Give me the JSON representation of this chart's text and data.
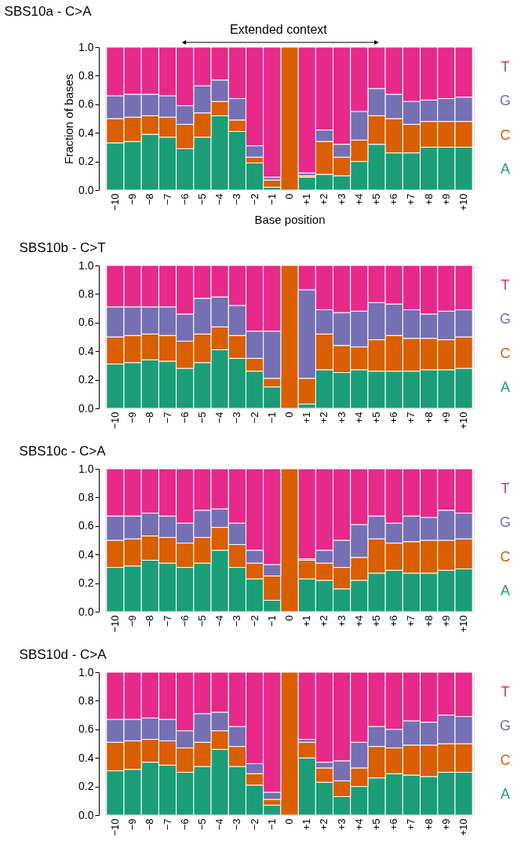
{
  "chart_data": [
    {
      "type": "bar",
      "stacked": true,
      "title": "SBS10a - C>A",
      "ylabel": "Fraction of bases",
      "xlabel": "Base position",
      "annotations": [
        "Extended context"
      ],
      "legend": "right",
      "ylim": [
        0,
        1
      ],
      "yticks": [
        {
          "value": 0,
          "label": "0.0"
        },
        {
          "value": 0.2,
          "label": "0.2"
        },
        {
          "value": 0.4,
          "label": "0.4"
        },
        {
          "value": 0.6,
          "label": "0.6"
        },
        {
          "value": 0.8,
          "label": "0.8"
        },
        {
          "value": 1,
          "label": "1.0"
        }
      ],
      "categories": [
        "−10",
        "−9",
        "−8",
        "−7",
        "−6",
        "−5",
        "−4",
        "−3",
        "−2",
        "−1",
        "0",
        "+1",
        "+2",
        "+3",
        "+4",
        "+5",
        "+6",
        "+7",
        "+8",
        "+9",
        "+10"
      ],
      "series": [
        {
          "name": "A",
          "color": "#1b9e77",
          "values": [
            0.33,
            0.34,
            0.39,
            0.37,
            0.29,
            0.37,
            0.52,
            0.41,
            0.19,
            0.02,
            0,
            0.09,
            0.11,
            0.1,
            0.2,
            0.32,
            0.26,
            0.26,
            0.3,
            0.3,
            0.3
          ]
        },
        {
          "name": "C",
          "color": "#d95f02",
          "values": [
            0.17,
            0.17,
            0.13,
            0.14,
            0.17,
            0.17,
            0.1,
            0.08,
            0.04,
            0.05,
            1,
            0.01,
            0.23,
            0.13,
            0.15,
            0.2,
            0.24,
            0.2,
            0.18,
            0.18,
            0.18
          ]
        },
        {
          "name": "G",
          "color": "#7570b3",
          "values": [
            0.16,
            0.16,
            0.15,
            0.15,
            0.13,
            0.19,
            0.15,
            0.15,
            0.08,
            0.02,
            0,
            0.02,
            0.08,
            0.09,
            0.2,
            0.19,
            0.17,
            0.16,
            0.15,
            0.16,
            0.17
          ]
        },
        {
          "name": "T",
          "color": "#e7298a",
          "values": [
            0.34,
            0.33,
            0.33,
            0.34,
            0.41,
            0.27,
            0.23,
            0.36,
            0.69,
            0.91,
            0,
            0.88,
            0.58,
            0.68,
            0.45,
            0.29,
            0.33,
            0.38,
            0.37,
            0.36,
            0.35
          ]
        }
      ]
    },
    {
      "type": "bar",
      "stacked": true,
      "title": "SBS10b - C>T",
      "legend": "right",
      "ylim": [
        0,
        1
      ],
      "yticks": [
        {
          "value": 0,
          "label": "0.0"
        },
        {
          "value": 0.2,
          "label": "0.2"
        },
        {
          "value": 0.4,
          "label": "0.4"
        },
        {
          "value": 0.6,
          "label": "0.6"
        },
        {
          "value": 0.8,
          "label": "0.8"
        },
        {
          "value": 1,
          "label": "1.0"
        }
      ],
      "categories": [
        "−10",
        "−9",
        "−8",
        "−7",
        "−6",
        "−5",
        "−4",
        "−3",
        "−2",
        "−1",
        "0",
        "+1",
        "+2",
        "+3",
        "+4",
        "+5",
        "+6",
        "+7",
        "+8",
        "+9",
        "+10"
      ],
      "series": [
        {
          "name": "A",
          "color": "#1b9e77",
          "values": [
            0.31,
            0.32,
            0.34,
            0.33,
            0.28,
            0.32,
            0.41,
            0.35,
            0.26,
            0.15,
            0,
            0.03,
            0.27,
            0.25,
            0.27,
            0.26,
            0.26,
            0.26,
            0.27,
            0.27,
            0.28
          ]
        },
        {
          "name": "C",
          "color": "#d95f02",
          "values": [
            0.19,
            0.19,
            0.18,
            0.18,
            0.19,
            0.2,
            0.16,
            0.16,
            0.09,
            0.06,
            1,
            0.18,
            0.25,
            0.19,
            0.16,
            0.22,
            0.25,
            0.23,
            0.22,
            0.21,
            0.22
          ]
        },
        {
          "name": "G",
          "color": "#7570b3",
          "values": [
            0.21,
            0.2,
            0.19,
            0.2,
            0.19,
            0.25,
            0.21,
            0.21,
            0.19,
            0.33,
            0,
            0.62,
            0.17,
            0.23,
            0.25,
            0.26,
            0.22,
            0.2,
            0.17,
            0.2,
            0.19
          ]
        },
        {
          "name": "T",
          "color": "#e7298a",
          "values": [
            0.29,
            0.29,
            0.29,
            0.29,
            0.34,
            0.23,
            0.22,
            0.28,
            0.46,
            0.46,
            0,
            0.17,
            0.31,
            0.33,
            0.32,
            0.26,
            0.27,
            0.31,
            0.34,
            0.32,
            0.31
          ]
        }
      ]
    },
    {
      "type": "bar",
      "stacked": true,
      "title": "SBS10c - C>A",
      "legend": "right",
      "ylim": [
        0,
        1
      ],
      "yticks": [
        {
          "value": 0,
          "label": "0.0"
        },
        {
          "value": 0.2,
          "label": "0.2"
        },
        {
          "value": 0.4,
          "label": "0.4"
        },
        {
          "value": 0.6,
          "label": "0.6"
        },
        {
          "value": 0.8,
          "label": "0.8"
        },
        {
          "value": 1,
          "label": "1.0"
        }
      ],
      "categories": [
        "−10",
        "−9",
        "−8",
        "−7",
        "−6",
        "−5",
        "−4",
        "−3",
        "−2",
        "−1",
        "0",
        "+1",
        "+2",
        "+3",
        "+4",
        "+5",
        "+6",
        "+7",
        "+8",
        "+9",
        "+10"
      ],
      "series": [
        {
          "name": "A",
          "color": "#1b9e77",
          "values": [
            0.31,
            0.32,
            0.36,
            0.34,
            0.31,
            0.34,
            0.43,
            0.31,
            0.23,
            0.08,
            0,
            0.23,
            0.22,
            0.16,
            0.22,
            0.27,
            0.29,
            0.27,
            0.27,
            0.29,
            0.3
          ]
        },
        {
          "name": "C",
          "color": "#d95f02",
          "values": [
            0.19,
            0.19,
            0.17,
            0.18,
            0.17,
            0.18,
            0.16,
            0.16,
            0.11,
            0.17,
            1,
            0.13,
            0.12,
            0.15,
            0.16,
            0.24,
            0.19,
            0.22,
            0.23,
            0.21,
            0.21
          ]
        },
        {
          "name": "G",
          "color": "#7570b3",
          "values": [
            0.17,
            0.16,
            0.16,
            0.15,
            0.14,
            0.19,
            0.13,
            0.15,
            0.09,
            0.08,
            0,
            0.01,
            0.09,
            0.19,
            0.23,
            0.16,
            0.14,
            0.18,
            0.16,
            0.21,
            0.18
          ]
        },
        {
          "name": "T",
          "color": "#e7298a",
          "values": [
            0.33,
            0.33,
            0.31,
            0.33,
            0.38,
            0.29,
            0.28,
            0.38,
            0.57,
            0.67,
            0,
            0.63,
            0.57,
            0.5,
            0.39,
            0.33,
            0.38,
            0.33,
            0.34,
            0.29,
            0.31
          ]
        }
      ]
    },
    {
      "type": "bar",
      "stacked": true,
      "title": "SBS10d - C>A",
      "legend": "right",
      "ylim": [
        0,
        1
      ],
      "yticks": [
        {
          "value": 0,
          "label": "0.0"
        },
        {
          "value": 0.2,
          "label": "0.2"
        },
        {
          "value": 0.4,
          "label": "0.4"
        },
        {
          "value": 0.6,
          "label": "0.6"
        },
        {
          "value": 0.8,
          "label": "0.8"
        },
        {
          "value": 1,
          "label": "1.0"
        }
      ],
      "categories": [
        "−10",
        "−9",
        "−8",
        "−7",
        "−6",
        "−5",
        "−4",
        "−3",
        "−2",
        "−1",
        "0",
        "+1",
        "+2",
        "+3",
        "+4",
        "+5",
        "+6",
        "+7",
        "+8",
        "+9",
        "+10"
      ],
      "series": [
        {
          "name": "A",
          "color": "#1b9e77",
          "values": [
            0.31,
            0.32,
            0.37,
            0.35,
            0.3,
            0.34,
            0.46,
            0.34,
            0.21,
            0.07,
            0,
            0.4,
            0.23,
            0.13,
            0.2,
            0.26,
            0.29,
            0.28,
            0.27,
            0.3,
            0.3
          ]
        },
        {
          "name": "C",
          "color": "#d95f02",
          "values": [
            0.2,
            0.2,
            0.16,
            0.17,
            0.17,
            0.17,
            0.13,
            0.14,
            0.08,
            0.04,
            1,
            0.11,
            0.1,
            0.11,
            0.13,
            0.22,
            0.18,
            0.21,
            0.22,
            0.2,
            0.2
          ]
        },
        {
          "name": "G",
          "color": "#7570b3",
          "values": [
            0.16,
            0.15,
            0.15,
            0.15,
            0.12,
            0.2,
            0.13,
            0.14,
            0.07,
            0.05,
            0,
            0.02,
            0.04,
            0.14,
            0.18,
            0.14,
            0.13,
            0.17,
            0.16,
            0.2,
            0.19
          ]
        },
        {
          "name": "T",
          "color": "#e7298a",
          "values": [
            0.33,
            0.33,
            0.32,
            0.33,
            0.41,
            0.29,
            0.28,
            0.38,
            0.64,
            0.84,
            0,
            0.47,
            0.63,
            0.62,
            0.49,
            0.38,
            0.4,
            0.34,
            0.35,
            0.3,
            0.31
          ]
        }
      ]
    }
  ]
}
